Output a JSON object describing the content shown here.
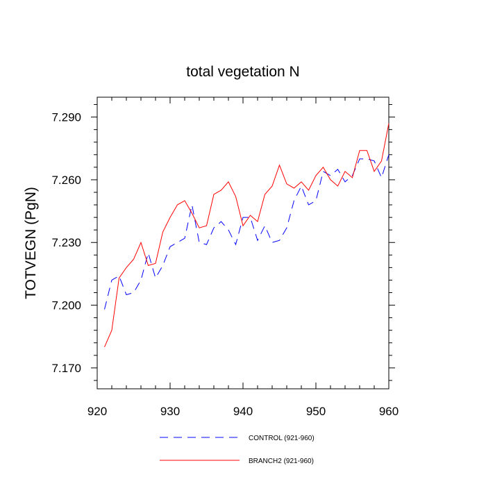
{
  "chart_data": {
    "type": "line",
    "title": "total vegetation N",
    "xlabel": "",
    "ylabel": "TOTVEGN  (PgN)",
    "xlim": [
      920,
      960
    ],
    "ylim": [
      7.16,
      7.2995
    ],
    "xticks": [
      920,
      930,
      940,
      950,
      960
    ],
    "xtick_labels": [
      "920",
      "930",
      "940",
      "950",
      "960"
    ],
    "yticks": [
      7.17,
      7.2,
      7.23,
      7.26,
      7.29
    ],
    "ytick_labels": [
      "7.170",
      "7.200",
      "7.230",
      "7.260",
      "7.290"
    ],
    "grid": false,
    "legend_position": "bottom",
    "x": [
      921,
      922,
      923,
      924,
      925,
      926,
      927,
      928,
      929,
      930,
      931,
      932,
      933,
      934,
      935,
      936,
      937,
      938,
      939,
      940,
      941,
      942,
      943,
      944,
      945,
      946,
      947,
      948,
      949,
      950,
      951,
      952,
      953,
      954,
      955,
      956,
      957,
      958,
      959,
      960
    ],
    "series": [
      {
        "name": "CONTROL (921-960)",
        "color": "#0000ff",
        "dash": "dashed",
        "values": [
          7.198,
          7.212,
          7.214,
          7.205,
          7.206,
          7.212,
          7.225,
          7.213,
          7.219,
          7.228,
          7.23,
          7.232,
          7.248,
          7.23,
          7.229,
          7.237,
          7.24,
          7.236,
          7.229,
          7.242,
          7.242,
          7.231,
          7.238,
          7.23,
          7.231,
          7.237,
          7.25,
          7.257,
          7.248,
          7.25,
          7.264,
          7.262,
          7.265,
          7.259,
          7.262,
          7.27,
          7.27,
          7.269,
          7.261,
          7.272
        ]
      },
      {
        "name": "BRANCH2 (921-960)",
        "color": "#ff0000",
        "dash": "solid",
        "values": [
          7.18,
          7.188,
          7.213,
          7.218,
          7.222,
          7.23,
          7.219,
          7.22,
          7.235,
          7.242,
          7.248,
          7.25,
          7.244,
          7.237,
          7.238,
          7.253,
          7.255,
          7.259,
          7.252,
          7.238,
          7.243,
          7.24,
          7.253,
          7.257,
          7.267,
          7.258,
          7.256,
          7.259,
          7.255,
          7.262,
          7.266,
          7.26,
          7.257,
          7.264,
          7.261,
          7.274,
          7.274,
          7.264,
          7.269,
          7.287
        ]
      }
    ]
  }
}
